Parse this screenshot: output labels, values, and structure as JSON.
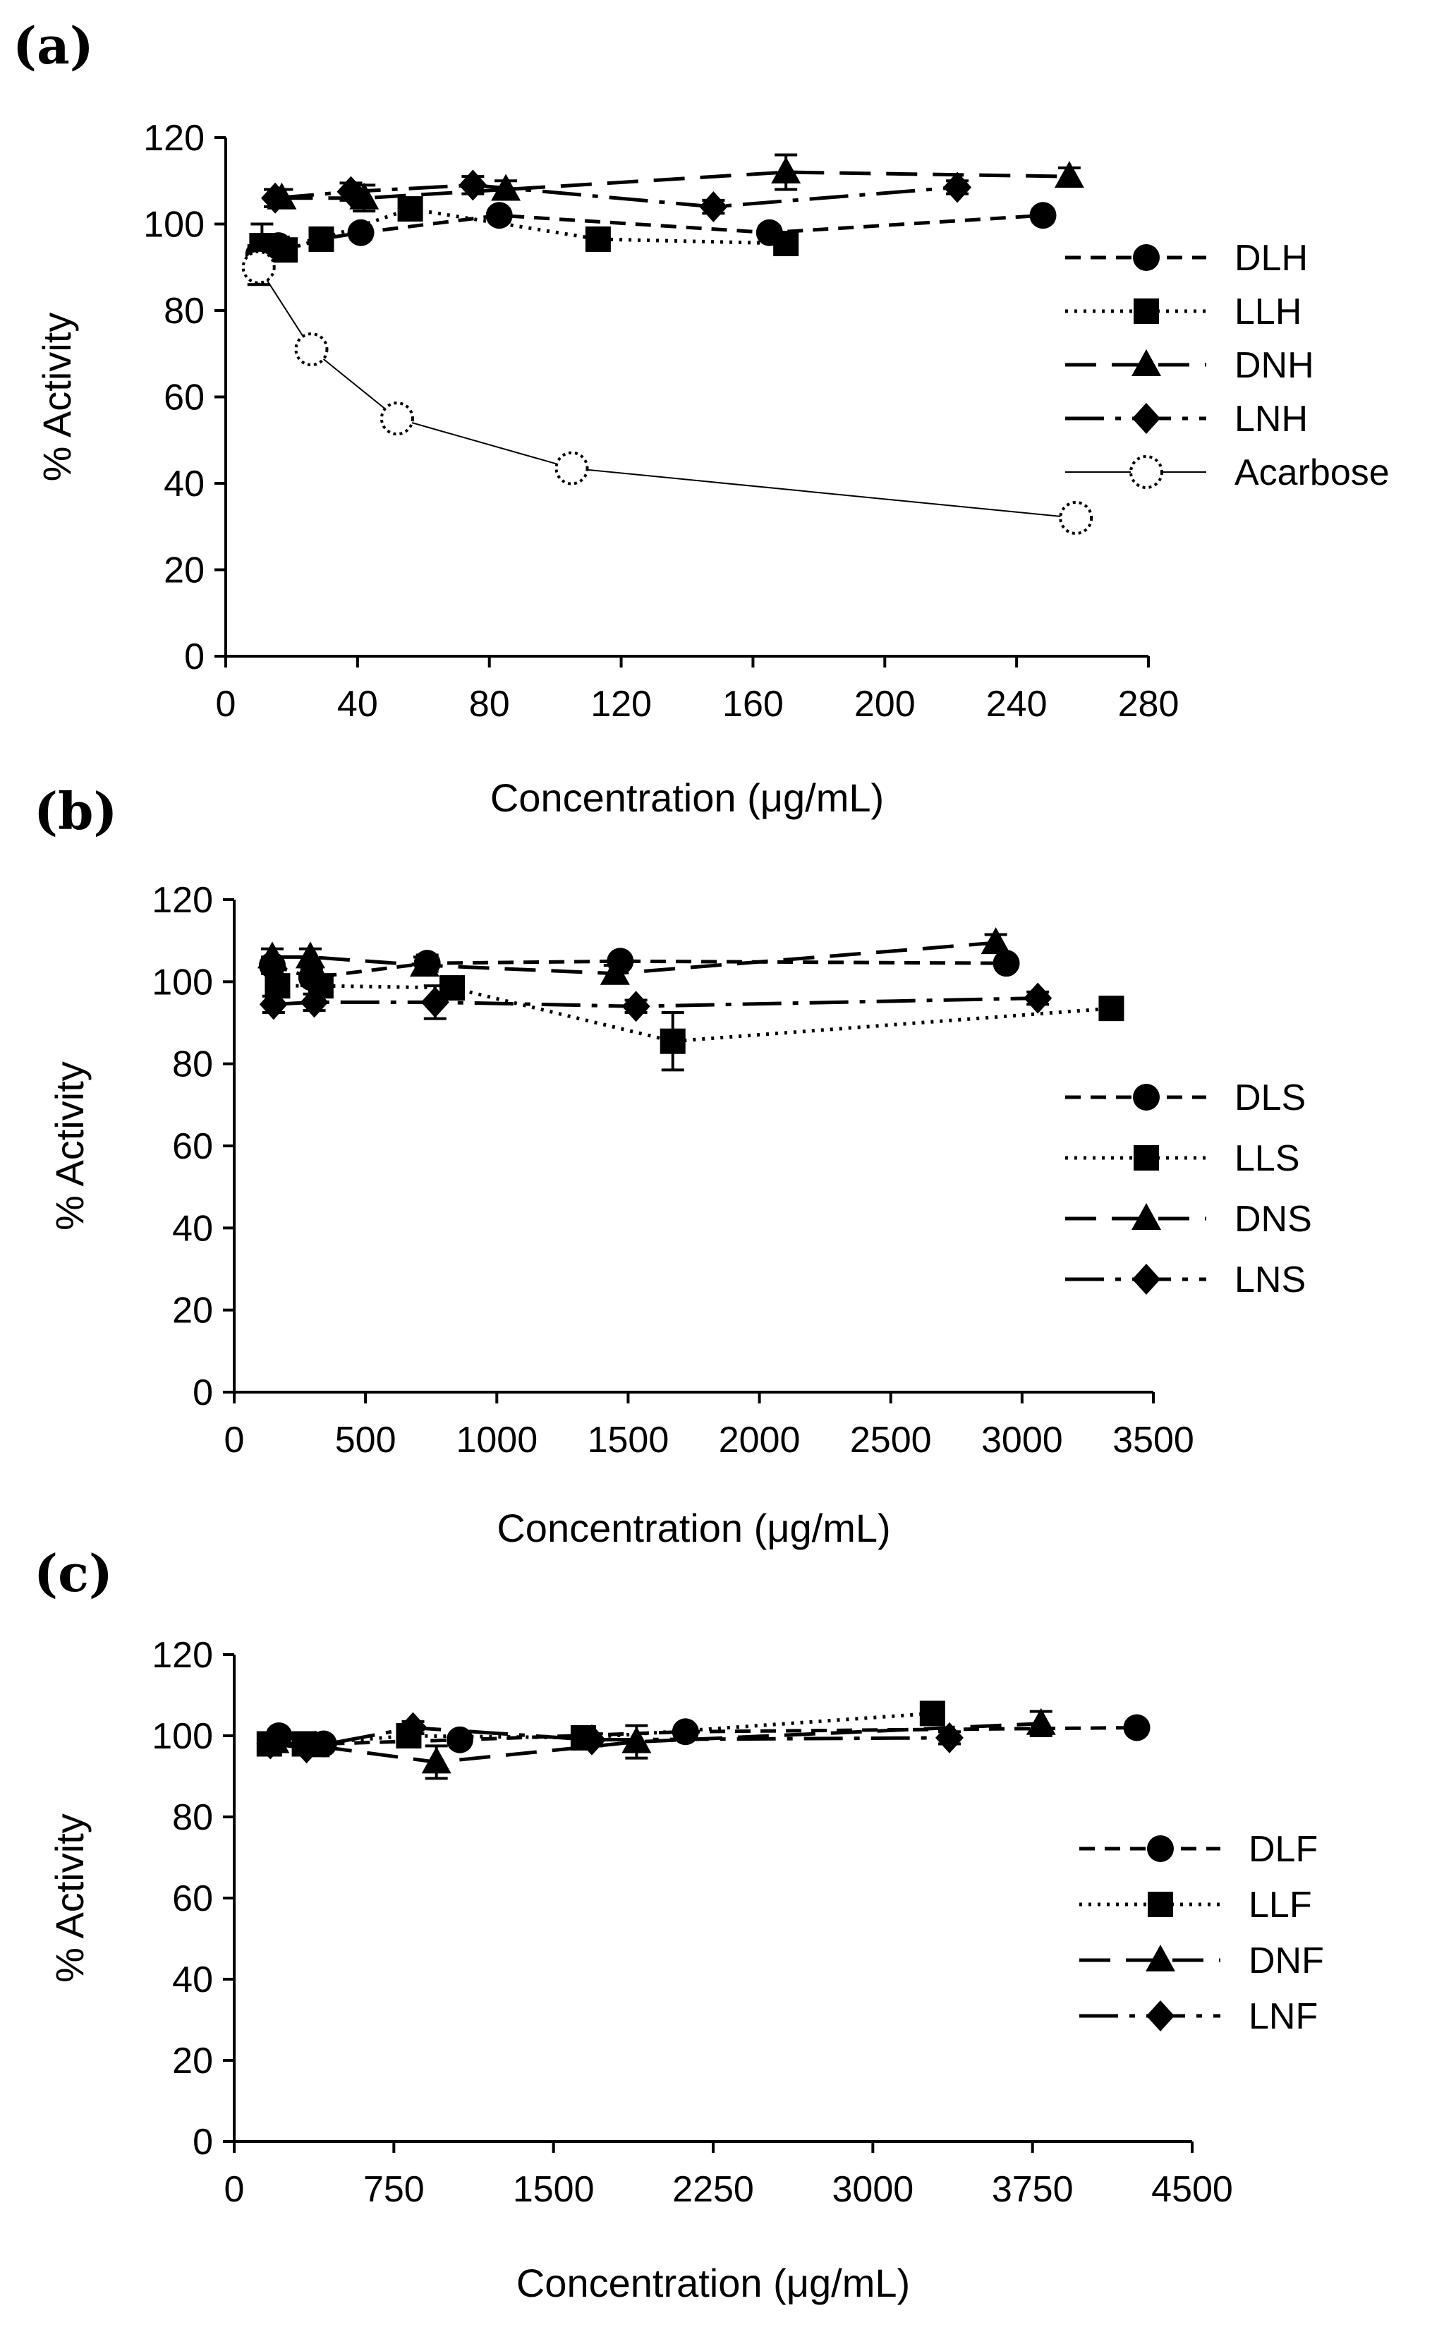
{
  "figure": {
    "panels": [
      "(a)",
      "(b)",
      "(c)"
    ]
  },
  "chart_data": [
    {
      "type": "line",
      "panel_label": "(a)",
      "xlabel": "Concentration (μg/mL)",
      "ylabel": "% Activity",
      "xlim": [
        0,
        280
      ],
      "ylim": [
        0,
        120
      ],
      "xticks": [
        0,
        40,
        80,
        120,
        160,
        200,
        240,
        280
      ],
      "yticks": [
        0,
        20,
        40,
        60,
        80,
        100,
        120
      ],
      "legend_position": "right",
      "series": [
        {
          "name": "DLH",
          "line": "dashed",
          "marker": "circle",
          "x": [
            10,
            16,
            41,
            83,
            165,
            248
          ],
          "y": [
            93,
            95,
            98,
            102,
            98,
            102
          ],
          "err": [
            2,
            2,
            1.5,
            1.5,
            1.5,
            1.5
          ]
        },
        {
          "name": "LLH",
          "line": "dotted",
          "marker": "square",
          "x": [
            11,
            18,
            29,
            56,
            113,
            170
          ],
          "y": [
            95,
            94,
            96.5,
            103.5,
            96.5,
            95.5
          ],
          "err": [
            5,
            2,
            1.5,
            2,
            1.5,
            1.5
          ]
        },
        {
          "name": "DNH",
          "line": "longdash",
          "marker": "triangle",
          "x": [
            17,
            42,
            85,
            170,
            256
          ],
          "y": [
            106,
            106,
            108,
            112,
            111
          ],
          "err": [
            2,
            3,
            2,
            4,
            2
          ]
        },
        {
          "name": "LNH",
          "line": "dashdot",
          "marker": "diamond",
          "x": [
            15,
            38,
            75,
            148,
            222
          ],
          "y": [
            106,
            107.5,
            109,
            104,
            108.5
          ],
          "err": [
            2,
            2,
            2,
            1.5,
            1.5
          ]
        },
        {
          "name": "Acarbose",
          "line": "solid-thin",
          "marker": "open-circle",
          "x": [
            10,
            26,
            52,
            105,
            258
          ],
          "y": [
            90,
            71,
            55,
            43.5,
            32
          ],
          "err": [
            4,
            1,
            1,
            1,
            1
          ]
        }
      ]
    },
    {
      "type": "line",
      "panel_label": "(b)",
      "xlabel": "Concentration (μg/mL)",
      "ylabel": "% Activity",
      "xlim": [
        0,
        3500
      ],
      "ylim": [
        0,
        120
      ],
      "xticks": [
        0,
        500,
        1000,
        1500,
        2000,
        2500,
        3000,
        3500
      ],
      "yticks": [
        0,
        20,
        40,
        60,
        80,
        100,
        120
      ],
      "legend_position": "right",
      "series": [
        {
          "name": "DLS",
          "line": "dashed",
          "marker": "circle",
          "x": [
            145,
            295,
            735,
            1470,
            2940
          ],
          "y": [
            104,
            101,
            104.5,
            105,
            104.5
          ],
          "err": [
            2,
            2,
            2,
            1.5,
            1.5
          ]
        },
        {
          "name": "LLS",
          "line": "dotted",
          "marker": "square",
          "x": [
            165,
            330,
            830,
            1670,
            3340
          ],
          "y": [
            99,
            99,
            98.5,
            85.5,
            93.5
          ],
          "err": [
            2,
            2,
            2,
            7,
            1.5
          ]
        },
        {
          "name": "DNS",
          "line": "longdash",
          "marker": "triangle",
          "x": [
            145,
            290,
            725,
            1450,
            2900
          ],
          "y": [
            106,
            106,
            104,
            102,
            109.5
          ],
          "err": [
            2,
            2,
            2,
            2,
            2
          ]
        },
        {
          "name": "LNS",
          "line": "dashdot",
          "marker": "diamond",
          "x": [
            150,
            305,
            765,
            1530,
            3060
          ],
          "y": [
            94.5,
            95,
            95,
            94,
            96
          ],
          "err": [
            2,
            2,
            4,
            1.5,
            1.5
          ]
        }
      ]
    },
    {
      "type": "line",
      "panel_label": "(c)",
      "xlabel": "Concentration (μg/mL)",
      "ylabel": "% Activity",
      "xlim": [
        0,
        4500
      ],
      "ylim": [
        0,
        120
      ],
      "xticks": [
        0,
        750,
        1500,
        2250,
        3000,
        3750,
        4500
      ],
      "yticks": [
        0,
        20,
        40,
        60,
        80,
        100,
        120
      ],
      "legend_position": "right",
      "series": [
        {
          "name": "DLF",
          "line": "dashed",
          "marker": "circle",
          "x": [
            210,
            420,
            1060,
            2120,
            4240
          ],
          "y": [
            100,
            98,
            99,
            101,
            102
          ],
          "err": [
            1.5,
            1.5,
            1.5,
            1.5,
            1.5
          ]
        },
        {
          "name": "LLF",
          "line": "dotted",
          "marker": "square",
          "x": [
            165,
            330,
            820,
            1640,
            3280
          ],
          "y": [
            98,
            98,
            100,
            99.5,
            105.5
          ],
          "err": [
            1.5,
            1.5,
            1.5,
            1.5,
            1.5
          ]
        },
        {
          "name": "DNF",
          "line": "longdash",
          "marker": "triangle",
          "x": [
            190,
            380,
            950,
            1890,
            3790
          ],
          "y": [
            98.5,
            97.5,
            93.5,
            98.5,
            103
          ],
          "err": [
            1.5,
            1.5,
            4,
            4,
            3
          ]
        },
        {
          "name": "LNF",
          "line": "dashdot",
          "marker": "diamond",
          "x": [
            170,
            340,
            840,
            1680,
            3360
          ],
          "y": [
            98,
            97,
            102,
            99,
            99.5
          ],
          "err": [
            1.5,
            1.5,
            1.5,
            1.5,
            1.5
          ]
        }
      ]
    }
  ]
}
